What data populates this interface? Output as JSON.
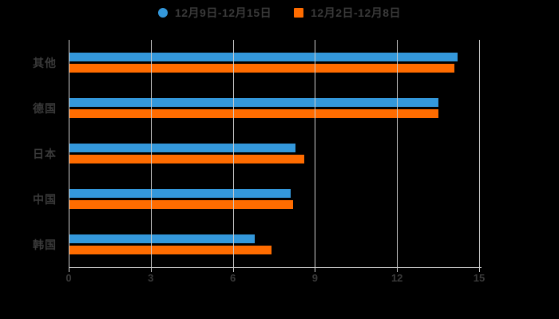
{
  "page": {
    "background": "#000000"
  },
  "legend": {
    "items": [
      {
        "label": "12月9日-12月15日",
        "marker": "circle",
        "color": "#3498db"
      },
      {
        "label": "12月2日-12月8日",
        "marker": "square",
        "color": "#ff6c00"
      }
    ]
  },
  "chart_data": {
    "type": "bar",
    "orientation": "horizontal",
    "title": "",
    "categories": [
      "其他",
      "德国",
      "日本",
      "中国",
      "韩国"
    ],
    "series": [
      {
        "name": "12月9日-12月15日",
        "color": "#3498db",
        "marker": "circle",
        "values": [
          14.2,
          13.5,
          8.3,
          8.1,
          6.8
        ]
      },
      {
        "name": "12月2日-12月8日",
        "color": "#ff6c00",
        "marker": "square",
        "values": [
          14.1,
          13.5,
          8.6,
          8.2,
          7.4
        ]
      }
    ],
    "xlabel": "",
    "ylabel": "",
    "xlim": [
      0,
      15
    ],
    "xticks": [
      "0",
      "3",
      "6",
      "9",
      "12",
      "15"
    ],
    "grid": true,
    "gridlines_over_bars": true,
    "gridline_color": "#cccccc",
    "axis_color": "#cccccc",
    "label_color": "#3a3a3a",
    "legend_position": "top"
  }
}
